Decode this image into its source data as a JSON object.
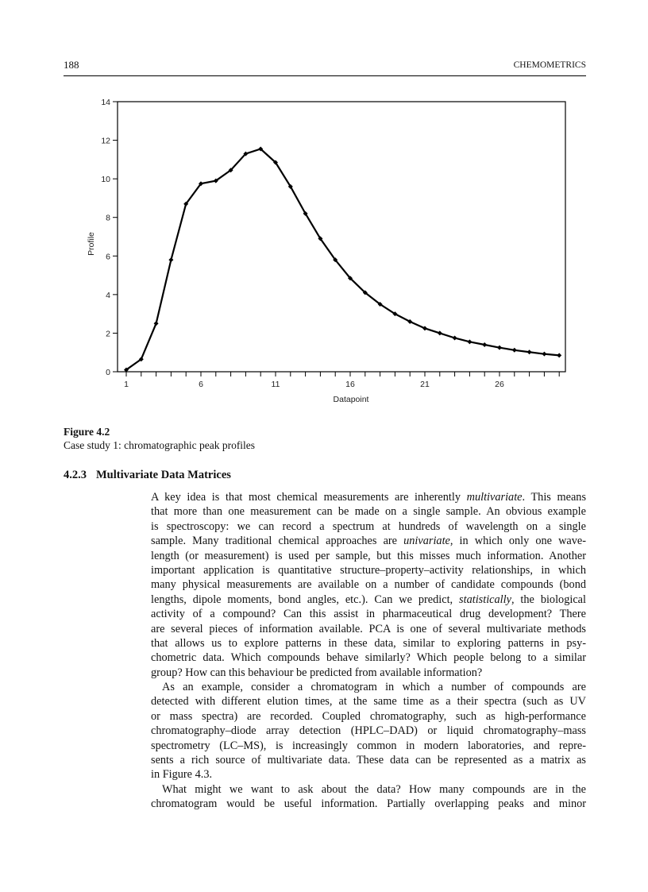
{
  "header": {
    "page_number": "188",
    "running_title": "CHEMOMETRICS"
  },
  "chart_data": {
    "type": "line",
    "xlabel": "Datapoint",
    "ylabel": "Profile",
    "xlim": [
      1,
      30
    ],
    "ylim": [
      0,
      14
    ],
    "x_ticks": [
      "1",
      "6",
      "11",
      "16",
      "21",
      "26"
    ],
    "y_ticks": [
      "0",
      "2",
      "4",
      "6",
      "8",
      "10",
      "12",
      "14"
    ],
    "grid": false,
    "markers": "diamond",
    "color": "#000000",
    "x": [
      1,
      2,
      3,
      4,
      5,
      6,
      7,
      8,
      9,
      10,
      11,
      12,
      13,
      14,
      15,
      16,
      17,
      18,
      19,
      20,
      21,
      22,
      23,
      24,
      25,
      26,
      27,
      28,
      29,
      30
    ],
    "values": [
      0.1,
      0.65,
      2.5,
      5.8,
      8.7,
      9.75,
      9.9,
      10.45,
      11.3,
      11.55,
      10.85,
      9.6,
      8.2,
      6.9,
      5.8,
      4.85,
      4.1,
      3.5,
      3.0,
      2.6,
      2.25,
      2.0,
      1.75,
      1.55,
      1.4,
      1.25,
      1.12,
      1.02,
      0.92,
      0.85
    ]
  },
  "figure": {
    "label": "Figure 4.2",
    "caption": "Case study 1: chromatographic peak profiles"
  },
  "section": {
    "number": "4.2.3",
    "title": "Multivariate Data Matrices"
  },
  "lines": [
    [
      {
        "t": "A key idea is that most chemical measurements are inherently "
      },
      {
        "t": "multivariate",
        "i": 1
      },
      {
        "t": ". This means"
      }
    ],
    [
      {
        "t": "that more than one measurement can be made on a single sample. An obvious example"
      }
    ],
    [
      {
        "t": "is spectroscopy: we can record a spectrum at hundreds of wavelength on a single"
      }
    ],
    [
      {
        "t": "sample. Many traditional chemical approaches are "
      },
      {
        "t": "univariate",
        "i": 1
      },
      {
        "t": ", in which only one wave-"
      }
    ],
    [
      {
        "t": "length (or measurement) is used per sample, but this misses much information. Another"
      }
    ],
    [
      {
        "t": "important application is quantitative structure–property–activity relationships, in which"
      }
    ],
    [
      {
        "t": "many physical measurements are available on a number of candidate compounds (bond"
      }
    ],
    [
      {
        "t": "lengths, dipole moments, bond angles, etc.). Can we predict, "
      },
      {
        "t": "statistically",
        "i": 1
      },
      {
        "t": ", the biological"
      }
    ],
    [
      {
        "t": "activity of a compound? Can this assist in pharmaceutical drug development? There"
      }
    ],
    [
      {
        "t": "are several pieces of information available. PCA is one of several multivariate methods"
      }
    ],
    [
      {
        "t": "that allows us to explore patterns in these data, similar to exploring patterns in psy-"
      }
    ],
    [
      {
        "t": "chometric data. Which compounds behave similarly? Which people belong to a similar"
      }
    ],
    [
      {
        "t": "group? How can this behaviour be predicted from available information?"
      }
    ],
    [
      {
        "t": "As an example, consider a chromatogram in which a number of compounds are"
      }
    ],
    [
      {
        "t": "detected with different elution times, at the same time as a their spectra (such as UV"
      }
    ],
    [
      {
        "t": "or mass spectra) are recorded. Coupled chromatography, such as high-performance"
      }
    ],
    [
      {
        "t": "chromatography–diode array detection (HPLC–DAD) or liquid chromatography–mass"
      }
    ],
    [
      {
        "t": "spectrometry (LC–MS), is increasingly common in modern laboratories, and repre-"
      }
    ],
    [
      {
        "t": "sents a rich source of multivariate data. These data can be represented as a matrix as"
      }
    ],
    [
      {
        "t": "in Figure 4.3."
      }
    ],
    [
      {
        "t": "What might we want to ask about the data? How many compounds are in the"
      }
    ],
    [
      {
        "t": "chromatogram would be useful information. Partially overlapping peaks and minor"
      }
    ]
  ]
}
